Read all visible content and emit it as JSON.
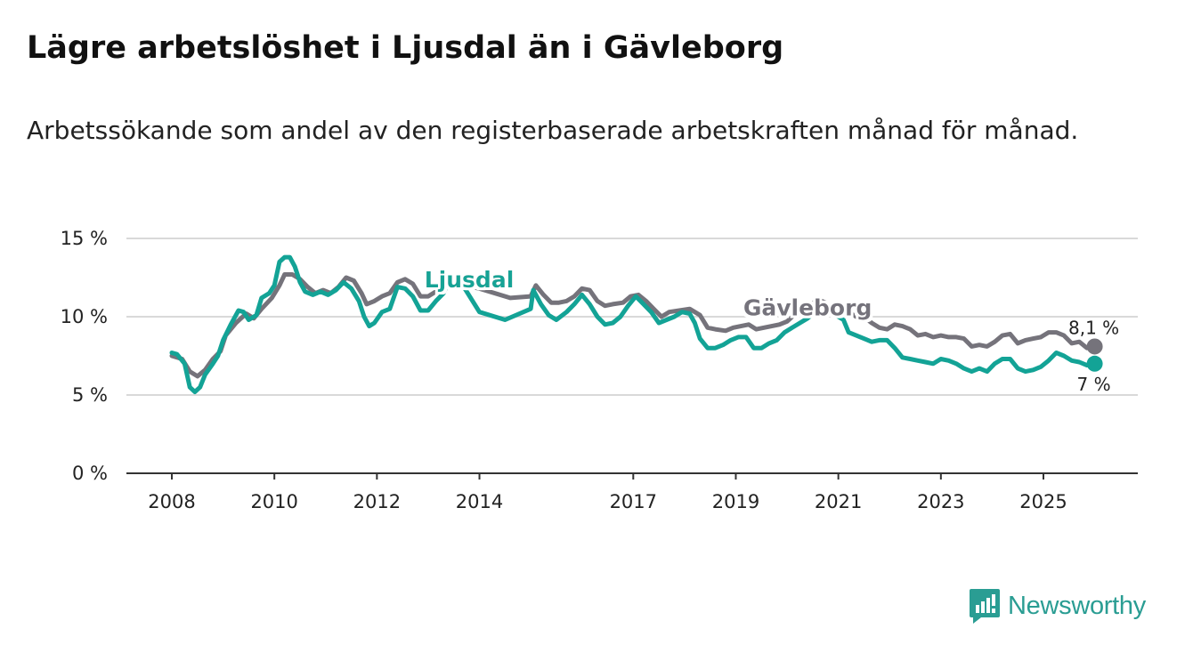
{
  "title": "Lägre arbetslöshet i Ljusdal än i Gävleborg",
  "subtitle": "Arbetssökande som andel av den registerbaserade arbetskraften månad för månad.",
  "brand": {
    "name": "Newsworthy",
    "icon": "newsworthy-logo-icon",
    "color": "#2a9d93"
  },
  "chart_data": {
    "type": "line",
    "title": "Lägre arbetslöshet i Ljusdal än i Gävleborg",
    "xlabel": "",
    "ylabel": "",
    "xlim": [
      2008,
      2026.58
    ],
    "ylim": [
      0,
      15
    ],
    "y_ticks": [
      0,
      5,
      10,
      15
    ],
    "y_tick_labels": [
      "0 %",
      "5 %",
      "10 %",
      "15 %"
    ],
    "x_ticks": [
      2008,
      2010,
      2012,
      2014,
      2017,
      2019,
      2021,
      2023,
      2025
    ],
    "x_tick_labels": [
      "2008",
      "2010",
      "2012",
      "2014",
      "2017",
      "2019",
      "2021",
      "2023",
      "2025"
    ],
    "grid": "horizontal",
    "series": [
      {
        "name": "Gävleborg",
        "color": "#75737b",
        "label_at": 2020.4,
        "end_label": "8,1 %",
        "points": [
          [
            2008.0,
            7.5
          ],
          [
            2008.2,
            7.3
          ],
          [
            2008.35,
            6.5
          ],
          [
            2008.5,
            6.2
          ],
          [
            2008.65,
            6.6
          ],
          [
            2008.8,
            7.3
          ],
          [
            2008.95,
            7.8
          ],
          [
            2009.05,
            8.8
          ],
          [
            2009.25,
            9.6
          ],
          [
            2009.45,
            10.2
          ],
          [
            2009.6,
            9.9
          ],
          [
            2009.75,
            10.5
          ],
          [
            2009.95,
            11.2
          ],
          [
            2010.1,
            12.0
          ],
          [
            2010.2,
            12.7
          ],
          [
            2010.35,
            12.7
          ],
          [
            2010.5,
            12.4
          ],
          [
            2010.65,
            11.9
          ],
          [
            2010.8,
            11.5
          ],
          [
            2010.95,
            11.7
          ],
          [
            2011.1,
            11.5
          ],
          [
            2011.25,
            11.9
          ],
          [
            2011.4,
            12.5
          ],
          [
            2011.55,
            12.3
          ],
          [
            2011.7,
            11.5
          ],
          [
            2011.8,
            10.8
          ],
          [
            2011.95,
            11.0
          ],
          [
            2012.1,
            11.3
          ],
          [
            2012.25,
            11.5
          ],
          [
            2012.4,
            12.2
          ],
          [
            2012.55,
            12.4
          ],
          [
            2012.7,
            12.1
          ],
          [
            2012.85,
            11.3
          ],
          [
            2013.0,
            11.3
          ],
          [
            2013.15,
            11.6
          ],
          [
            2013.3,
            12.0
          ],
          [
            2013.45,
            12.3
          ],
          [
            2013.55,
            12.1
          ],
          [
            2014.0,
            11.8
          ],
          [
            2014.6,
            11.2
          ],
          [
            2015.0,
            11.3
          ],
          [
            2015.1,
            12.0
          ],
          [
            2015.25,
            11.4
          ],
          [
            2015.4,
            10.9
          ],
          [
            2015.55,
            10.9
          ],
          [
            2015.7,
            11.0
          ],
          [
            2015.85,
            11.3
          ],
          [
            2016.0,
            11.8
          ],
          [
            2016.15,
            11.7
          ],
          [
            2016.3,
            11.0
          ],
          [
            2016.45,
            10.7
          ],
          [
            2016.6,
            10.8
          ],
          [
            2016.8,
            10.9
          ],
          [
            2016.95,
            11.3
          ],
          [
            2017.1,
            11.4
          ],
          [
            2017.25,
            11.0
          ],
          [
            2017.4,
            10.5
          ],
          [
            2017.55,
            10.0
          ],
          [
            2017.7,
            10.3
          ],
          [
            2017.9,
            10.4
          ],
          [
            2018.1,
            10.5
          ],
          [
            2018.3,
            10.1
          ],
          [
            2018.45,
            9.3
          ],
          [
            2018.6,
            9.2
          ],
          [
            2018.8,
            9.1
          ],
          [
            2018.95,
            9.3
          ],
          [
            2019.1,
            9.4
          ],
          [
            2019.25,
            9.5
          ],
          [
            2019.4,
            9.2
          ],
          [
            2019.55,
            9.3
          ],
          [
            2019.7,
            9.4
          ],
          [
            2019.85,
            9.5
          ],
          [
            2020.0,
            9.7
          ],
          [
            2020.2,
            10.3
          ],
          [
            2020.4,
            10.6
          ],
          [
            2020.6,
            11.1
          ],
          [
            2020.75,
            10.9
          ],
          [
            2020.9,
            10.6
          ],
          [
            2021.0,
            10.8
          ],
          [
            2021.1,
            10.6
          ],
          [
            2021.25,
            10.2
          ],
          [
            2021.4,
            9.9
          ],
          [
            2021.5,
            10.0
          ],
          [
            2021.65,
            9.6
          ],
          [
            2021.8,
            9.3
          ],
          [
            2021.95,
            9.2
          ],
          [
            2022.1,
            9.5
          ],
          [
            2022.25,
            9.4
          ],
          [
            2022.4,
            9.2
          ],
          [
            2022.55,
            8.8
          ],
          [
            2022.7,
            8.9
          ],
          [
            2022.85,
            8.7
          ],
          [
            2023.0,
            8.8
          ],
          [
            2023.15,
            8.7
          ],
          [
            2023.3,
            8.7
          ],
          [
            2023.45,
            8.6
          ],
          [
            2023.6,
            8.1
          ],
          [
            2023.75,
            8.2
          ],
          [
            2023.9,
            8.1
          ],
          [
            2024.05,
            8.4
          ],
          [
            2024.2,
            8.8
          ],
          [
            2024.35,
            8.9
          ],
          [
            2024.5,
            8.3
          ],
          [
            2024.65,
            8.5
          ],
          [
            2024.8,
            8.6
          ],
          [
            2024.95,
            8.7
          ],
          [
            2025.1,
            9.0
          ],
          [
            2025.25,
            9.0
          ],
          [
            2025.4,
            8.8
          ],
          [
            2025.55,
            8.3
          ],
          [
            2025.7,
            8.4
          ],
          [
            2025.85,
            8.0
          ],
          [
            2026.0,
            8.1
          ]
        ]
      },
      {
        "name": "Ljusdal",
        "color": "#13a396",
        "label_at": 2013.8,
        "end_label": "7 %",
        "points": [
          [
            2008.0,
            7.7
          ],
          [
            2008.1,
            7.6
          ],
          [
            2008.25,
            7.0
          ],
          [
            2008.35,
            5.5
          ],
          [
            2008.45,
            5.2
          ],
          [
            2008.55,
            5.5
          ],
          [
            2008.65,
            6.3
          ],
          [
            2008.8,
            7.0
          ],
          [
            2008.9,
            7.5
          ],
          [
            2009.0,
            8.5
          ],
          [
            2009.15,
            9.5
          ],
          [
            2009.3,
            10.4
          ],
          [
            2009.4,
            10.3
          ],
          [
            2009.5,
            9.8
          ],
          [
            2009.65,
            10.1
          ],
          [
            2009.75,
            11.2
          ],
          [
            2009.9,
            11.5
          ],
          [
            2010.0,
            12.0
          ],
          [
            2010.1,
            13.5
          ],
          [
            2010.2,
            13.8
          ],
          [
            2010.3,
            13.8
          ],
          [
            2010.4,
            13.2
          ],
          [
            2010.5,
            12.2
          ],
          [
            2010.6,
            11.6
          ],
          [
            2010.75,
            11.4
          ],
          [
            2010.9,
            11.6
          ],
          [
            2011.05,
            11.4
          ],
          [
            2011.2,
            11.7
          ],
          [
            2011.35,
            12.2
          ],
          [
            2011.5,
            11.8
          ],
          [
            2011.65,
            11.0
          ],
          [
            2011.75,
            10.0
          ],
          [
            2011.85,
            9.4
          ],
          [
            2011.95,
            9.6
          ],
          [
            2012.1,
            10.3
          ],
          [
            2012.25,
            10.5
          ],
          [
            2012.4,
            11.9
          ],
          [
            2012.55,
            11.8
          ],
          [
            2012.7,
            11.3
          ],
          [
            2012.85,
            10.4
          ],
          [
            2013.0,
            10.4
          ],
          [
            2013.15,
            11.0
          ],
          [
            2013.3,
            11.5
          ],
          [
            2013.4,
            12.3
          ],
          [
            2013.5,
            12.6
          ],
          [
            2013.6,
            12.4
          ],
          [
            2014.0,
            10.3
          ],
          [
            2014.5,
            9.8
          ],
          [
            2015.0,
            10.5
          ],
          [
            2015.05,
            11.7
          ],
          [
            2015.2,
            10.8
          ],
          [
            2015.35,
            10.1
          ],
          [
            2015.5,
            9.8
          ],
          [
            2015.7,
            10.3
          ],
          [
            2015.85,
            10.8
          ],
          [
            2016.0,
            11.4
          ],
          [
            2016.15,
            10.8
          ],
          [
            2016.3,
            10.0
          ],
          [
            2016.45,
            9.5
          ],
          [
            2016.6,
            9.6
          ],
          [
            2016.75,
            10.0
          ],
          [
            2016.9,
            10.7
          ],
          [
            2017.05,
            11.3
          ],
          [
            2017.2,
            10.8
          ],
          [
            2017.35,
            10.3
          ],
          [
            2017.5,
            9.6
          ],
          [
            2017.65,
            9.8
          ],
          [
            2017.8,
            10.0
          ],
          [
            2017.95,
            10.3
          ],
          [
            2018.1,
            10.2
          ],
          [
            2018.2,
            9.6
          ],
          [
            2018.3,
            8.6
          ],
          [
            2018.45,
            8.0
          ],
          [
            2018.6,
            8.0
          ],
          [
            2018.75,
            8.2
          ],
          [
            2018.9,
            8.5
          ],
          [
            2019.05,
            8.7
          ],
          [
            2019.2,
            8.7
          ],
          [
            2019.35,
            8.0
          ],
          [
            2019.5,
            8.0
          ],
          [
            2019.65,
            8.3
          ],
          [
            2019.8,
            8.5
          ],
          [
            2019.95,
            9.0
          ],
          [
            2020.1,
            9.3
          ],
          [
            2020.25,
            9.6
          ],
          [
            2020.4,
            9.9
          ],
          [
            2020.55,
            10.3
          ],
          [
            2020.7,
            10.5
          ],
          [
            2020.85,
            10.3
          ],
          [
            2021.0,
            10.0
          ],
          [
            2021.1,
            9.8
          ],
          [
            2021.2,
            9.0
          ],
          [
            2021.35,
            8.8
          ],
          [
            2021.5,
            8.6
          ],
          [
            2021.65,
            8.4
          ],
          [
            2021.8,
            8.5
          ],
          [
            2021.95,
            8.5
          ],
          [
            2022.1,
            8.0
          ],
          [
            2022.25,
            7.4
          ],
          [
            2022.4,
            7.3
          ],
          [
            2022.55,
            7.2
          ],
          [
            2022.7,
            7.1
          ],
          [
            2022.85,
            7.0
          ],
          [
            2023.0,
            7.3
          ],
          [
            2023.15,
            7.2
          ],
          [
            2023.3,
            7.0
          ],
          [
            2023.45,
            6.7
          ],
          [
            2023.6,
            6.5
          ],
          [
            2023.75,
            6.7
          ],
          [
            2023.9,
            6.5
          ],
          [
            2024.05,
            7.0
          ],
          [
            2024.2,
            7.3
          ],
          [
            2024.35,
            7.3
          ],
          [
            2024.5,
            6.7
          ],
          [
            2024.65,
            6.5
          ],
          [
            2024.8,
            6.6
          ],
          [
            2024.95,
            6.8
          ],
          [
            2025.1,
            7.2
          ],
          [
            2025.25,
            7.7
          ],
          [
            2025.4,
            7.5
          ],
          [
            2025.55,
            7.2
          ],
          [
            2025.7,
            7.1
          ],
          [
            2025.85,
            6.9
          ],
          [
            2026.0,
            7.0
          ]
        ]
      }
    ]
  }
}
